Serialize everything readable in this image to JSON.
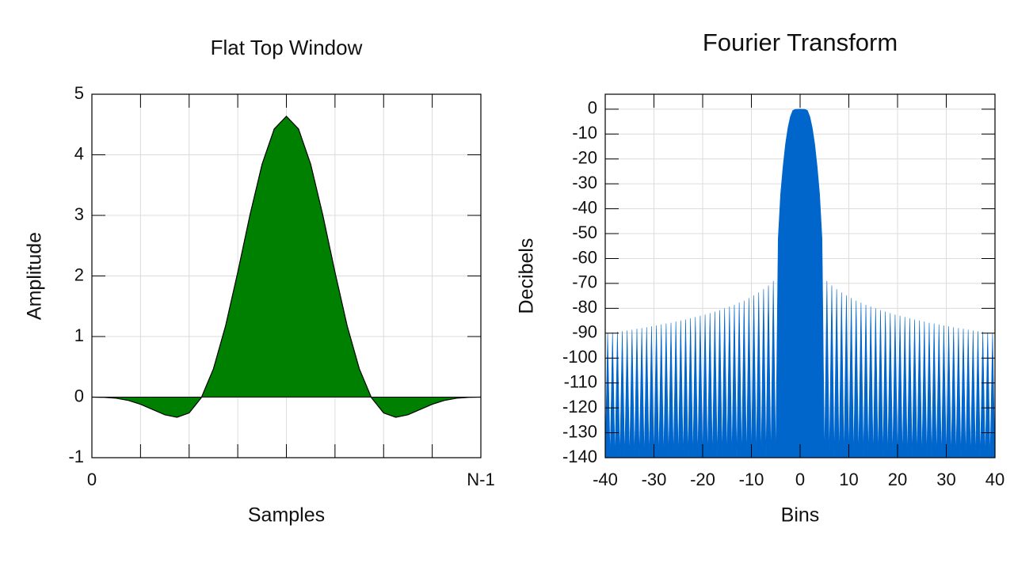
{
  "chart_data": [
    {
      "type": "area",
      "title": "Flat Top Window",
      "xlabel": "Samples",
      "ylabel": "Amplitude",
      "fill": "to-zero",
      "outline": true,
      "x": [
        0,
        0.03125,
        0.0625,
        0.09375,
        0.125,
        0.15625,
        0.1875,
        0.21875,
        0.25,
        0.28125,
        0.3125,
        0.34375,
        0.375,
        0.40625,
        0.4375,
        0.46875,
        0.5,
        0.53125,
        0.5625,
        0.59375,
        0.625,
        0.65625,
        0.6875,
        0.71875,
        0.75,
        0.78125,
        0.8125,
        0.84375,
        0.875,
        0.90625,
        0.9375,
        0.96875,
        1
      ],
      "values": [
        0,
        -0.004,
        -0.019,
        -0.055,
        -0.118,
        -0.205,
        -0.292,
        -0.333,
        -0.262,
        -0.011,
        0.468,
        1.178,
        2.062,
        3.003,
        3.844,
        4.427,
        4.636,
        4.427,
        3.844,
        3.003,
        2.062,
        1.178,
        0.468,
        -0.011,
        -0.262,
        -0.333,
        -0.292,
        -0.205,
        -0.118,
        -0.055,
        -0.019,
        -0.004,
        0
      ],
      "color": "#008000",
      "xlim": [
        0,
        1
      ],
      "xticks": [
        0,
        {
          "value": 1,
          "label": "N-1"
        }
      ],
      "xminorticks": [
        0.125,
        0.25,
        0.375,
        0.5,
        0.625,
        0.75,
        0.875
      ],
      "ylim": [
        -1,
        5
      ],
      "yticks": [
        -1,
        0,
        1,
        2,
        3,
        4,
        5
      ],
      "grid": true
    },
    {
      "type": "area",
      "title": "Fourier Transform",
      "xlabel": "Bins",
      "ylabel": "Decibels",
      "fill": "to-bottom",
      "outline": false,
      "x": [
        -40,
        -39.5,
        -39,
        -38.5,
        -38,
        -37.5,
        -37,
        -36.5,
        -36,
        -35.5,
        -35,
        -34.5,
        -34,
        -33.5,
        -33,
        -32.5,
        -32,
        -31.5,
        -31,
        -30.5,
        -30,
        -29.5,
        -29,
        -28.5,
        -28,
        -27.5,
        -27,
        -26.5,
        -26,
        -25.5,
        -25,
        -24.5,
        -24,
        -23.5,
        -23,
        -22.5,
        -22,
        -21.5,
        -21,
        -20.5,
        -20,
        -19.5,
        -19,
        -18.5,
        -18,
        -17.5,
        -17,
        -16.5,
        -16,
        -15.5,
        -15,
        -14.5,
        -14,
        -13.5,
        -13,
        -12.5,
        -12,
        -11.5,
        -11,
        -10.5,
        -10,
        -9.5,
        -9,
        -8.5,
        -8,
        -7.5,
        -7,
        -6.5,
        -6,
        -5.5,
        -5,
        -4.5,
        -4,
        -3.5,
        -3,
        -2.5,
        -2,
        -1.5,
        -1,
        -0.5,
        0,
        0.5,
        1,
        1.5,
        2,
        2.5,
        3,
        3.5,
        4,
        4.5,
        5,
        5.5,
        6,
        6.5,
        7,
        7.5,
        8,
        8.5,
        9,
        9.5,
        10,
        10.5,
        11,
        11.5,
        12,
        12.5,
        13,
        13.5,
        14,
        14.5,
        15,
        15.5,
        16,
        16.5,
        17,
        17.5,
        18,
        18.5,
        19,
        19.5,
        20,
        20.5,
        21,
        21.5,
        22,
        22.5,
        23,
        23.5,
        24,
        24.5,
        25,
        25.5,
        26,
        26.5,
        27,
        27.5,
        28,
        28.5,
        29,
        29.5,
        30,
        30.5,
        31,
        31.5,
        32,
        32.5,
        33,
        33.5,
        34,
        34.5,
        35,
        35.5,
        36,
        36.5,
        37,
        37.5,
        38,
        38.5,
        39,
        39.5,
        40
      ],
      "values": [
        -140,
        -90,
        -140,
        -89.7,
        -140,
        -89.4,
        -140,
        -89.2,
        -140,
        -88.9,
        -140,
        -88.6,
        -140,
        -88.2,
        -140,
        -87.9,
        -140,
        -87.6,
        -140,
        -87.2,
        -140,
        -86.9,
        -140,
        -86.5,
        -140,
        -86.1,
        -140,
        -85.8,
        -140,
        -85.3,
        -140,
        -84.9,
        -140,
        -84.5,
        -140,
        -84,
        -140,
        -83.5,
        -140,
        -83,
        -140,
        -82.5,
        -140,
        -81.9,
        -140,
        -81.3,
        -140,
        -80.7,
        -140,
        -80,
        -140,
        -79.3,
        -140,
        -78.6,
        -140,
        -77.7,
        -140,
        -76.9,
        -140,
        -75.9,
        -140,
        -74.8,
        -140,
        -73.6,
        -140,
        -72.3,
        -140,
        -70.8,
        -140,
        -69,
        -140,
        -52,
        -34,
        -23,
        -14,
        -7.5,
        -3,
        -0.5,
        -0.05,
        -0.01,
        0,
        -0.01,
        -0.05,
        -0.5,
        -3,
        -7.5,
        -14,
        -23,
        -34,
        -52,
        -140,
        -69,
        -140,
        -70.8,
        -140,
        -72.3,
        -140,
        -73.6,
        -140,
        -74.8,
        -140,
        -75.9,
        -140,
        -76.9,
        -140,
        -77.7,
        -140,
        -78.6,
        -140,
        -79.3,
        -140,
        -80,
        -140,
        -80.7,
        -140,
        -81.3,
        -140,
        -81.9,
        -140,
        -82.5,
        -140,
        -83,
        -140,
        -83.5,
        -140,
        -84,
        -140,
        -84.5,
        -140,
        -84.9,
        -140,
        -85.3,
        -140,
        -85.8,
        -140,
        -86.1,
        -140,
        -86.5,
        -140,
        -86.9,
        -140,
        -87.2,
        -140,
        -87.6,
        -140,
        -87.9,
        -140,
        -88.2,
        -140,
        -88.6,
        -140,
        -88.9,
        -140,
        -89.2,
        -140,
        -89.4,
        -140,
        -89.7,
        -140,
        -90,
        -140
      ],
      "color": "#0066cc",
      "xlim": [
        -40,
        40
      ],
      "xticks": [
        -40,
        -30,
        -20,
        -10,
        0,
        10,
        20,
        30,
        40
      ],
      "ylim": [
        -140,
        6
      ],
      "yticks": [
        -140,
        -130,
        -120,
        -110,
        -100,
        -90,
        -80,
        -70,
        -60,
        -50,
        -40,
        -30,
        -20,
        -10,
        0
      ],
      "grid": true
    }
  ]
}
